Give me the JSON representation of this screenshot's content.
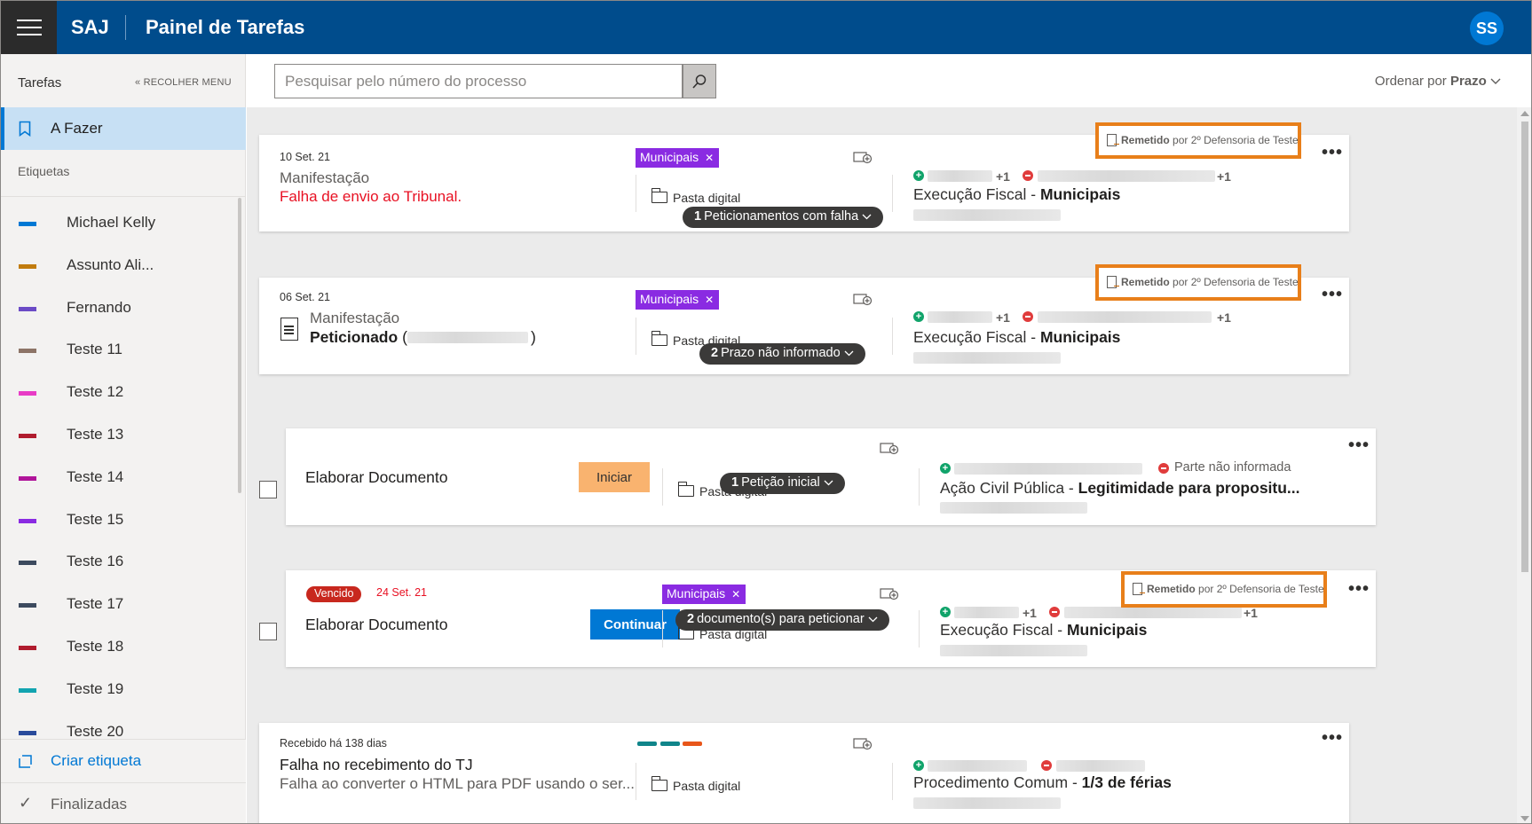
{
  "header": {
    "brand": "SAJ",
    "title": "Painel de Tarefas",
    "avatar": "SS"
  },
  "sidebar": {
    "title": "Tarefas",
    "collapse": "« RECOLHER MENU",
    "active": "A Fazer",
    "section": "Etiquetas",
    "tags": [
      {
        "label": "Michael Kelly",
        "color": "#0078d4"
      },
      {
        "label": "Assunto Ali...",
        "color": "#c17c0e"
      },
      {
        "label": "Fernando",
        "color": "#6b4bc6"
      },
      {
        "label": "Teste 11",
        "color": "#8d7467"
      },
      {
        "label": "Teste 12",
        "color": "#e83cc6"
      },
      {
        "label": "Teste 13",
        "color": "#b01c2e"
      },
      {
        "label": "Teste 14",
        "color": "#b0159a"
      },
      {
        "label": "Teste 15",
        "color": "#8a2be2"
      },
      {
        "label": "Teste 16",
        "color": "#3c4a5e"
      },
      {
        "label": "Teste 17",
        "color": "#3c4a5e"
      },
      {
        "label": "Teste 18",
        "color": "#b01c2e"
      },
      {
        "label": "Teste 19",
        "color": "#12a4b0"
      },
      {
        "label": "Teste 20",
        "color": "#2a4b9b"
      }
    ],
    "create": "Criar etiqueta",
    "finished": "Finalizadas"
  },
  "toolbar": {
    "search_placeholder": "Pesquisar pelo número do processo",
    "sort_prefix": "Ordenar por",
    "sort_value": "Prazo"
  },
  "common": {
    "pasta": "Pasta digital",
    "remetido_bold": "Remetido",
    "remetido_rest": "por 2º Defensoria de Teste",
    "plus_one": "+1",
    "more": "•••"
  },
  "tasks": [
    {
      "date": "10 Set. 21",
      "line1": "Manifestação",
      "line2": "Falha de envio ao Tribunal.",
      "tag": "Municipais",
      "class_a": "Execução Fiscal - ",
      "class_b": "Municipais",
      "pill_count": "1",
      "pill_text": "Peticionamentos com falha"
    },
    {
      "date": "06 Set. 21",
      "line1": "Manifestação",
      "line2": "Peticionado",
      "paren_open": "(",
      "paren_close": ")",
      "tag": "Municipais",
      "class_a": "Execução Fiscal - ",
      "class_b": "Municipais",
      "pill_count": "2",
      "pill_text": "Prazo não informado"
    },
    {
      "title": "Elaborar Documento",
      "button": "Iniciar",
      "parte": "Parte não informada",
      "class_a": "Ação Civil Pública - ",
      "class_b": "Legitimidade para propositu...",
      "pill_count": "1",
      "pill_text": "Petição inicial"
    },
    {
      "badge": "Vencido",
      "date": "24 Set. 21",
      "title": "Elaborar Documento",
      "button": "Continuar",
      "tag": "Municipais",
      "class_a": "Execução Fiscal - ",
      "class_b": "Municipais",
      "pill_count": "2",
      "pill_text": "documento(s) para peticionar"
    },
    {
      "date": "Recebido há 138 dias",
      "title": "Falha no recebimento do TJ",
      "subtitle": "Falha ao converter o HTML para PDF usando o ser...",
      "stripes": [
        "#10858a",
        "#10858a",
        "#e8561a"
      ],
      "class_a": "Procedimento Comum - ",
      "class_b": "1/3 de férias"
    }
  ],
  "colors": {
    "topbar": "#004c8c",
    "accent": "#0078d4",
    "tag": "#8a2be2",
    "highlight": "#e87f1a"
  }
}
